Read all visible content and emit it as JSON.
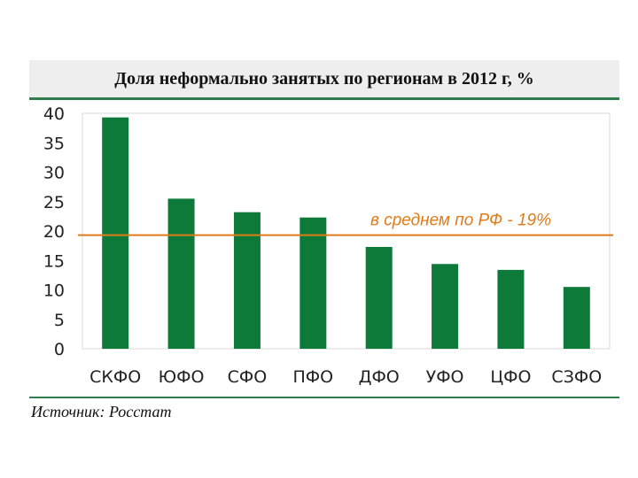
{
  "chart_data": {
    "type": "bar",
    "title": "Доля неформально занятых по регионам в 2012 г, %",
    "categories": [
      "СКФО",
      "ЮФО",
      "СФО",
      "ПФО",
      "ДФО",
      "УФО",
      "ЦФО",
      "СЗФО"
    ],
    "values": [
      39.3,
      25.5,
      23.2,
      22.3,
      17.3,
      14.4,
      13.4,
      10.5
    ],
    "ylim": [
      0,
      40
    ],
    "yticks": [
      0,
      5,
      10,
      15,
      20,
      25,
      30,
      35,
      40
    ],
    "grid": false,
    "reference_line": {
      "value": 19.3,
      "label": "в среднем  по РФ - 19%"
    },
    "bar_color": "#0d7a3a",
    "line_color": "#e07b1a"
  },
  "source": "Источник: Росстат"
}
